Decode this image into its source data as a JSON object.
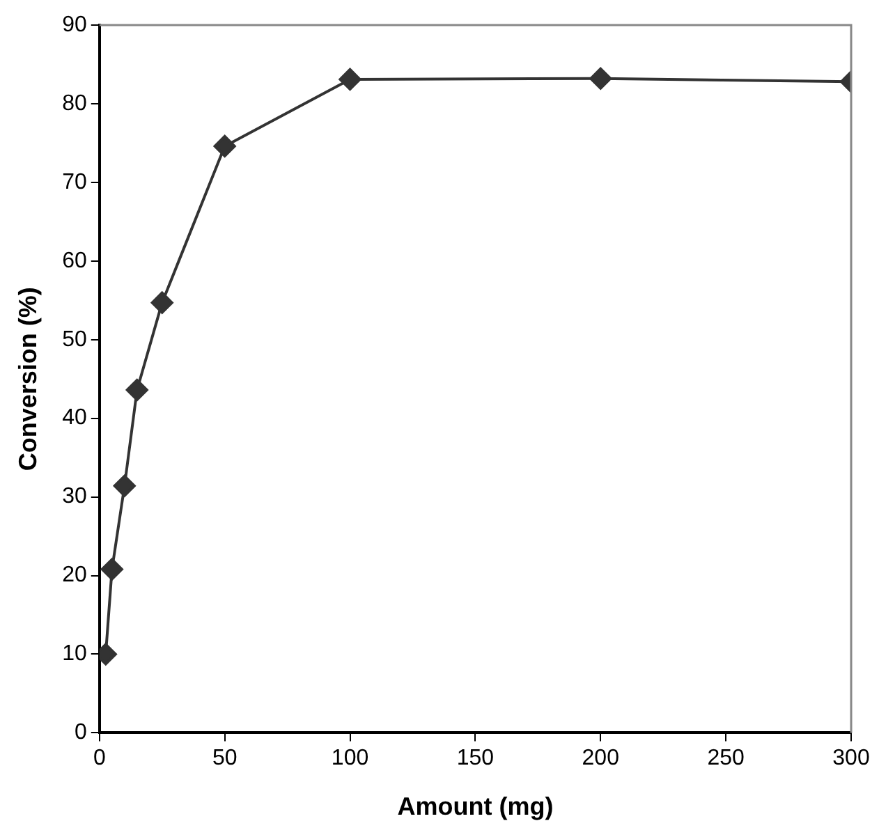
{
  "chart_data": {
    "type": "line",
    "xlabel": "Amount (mg)",
    "ylabel": "Conversion (%)",
    "series": [
      {
        "color": "#333333",
        "x": [
          2.5,
          5,
          10,
          15,
          25,
          50,
          100,
          200,
          300
        ],
        "values": [
          10.0,
          20.8,
          31.4,
          43.6,
          54.7,
          74.6,
          83.1,
          83.2,
          82.8
        ]
      }
    ],
    "xlim": [
      0,
      300
    ],
    "xticks": [
      0,
      50,
      100,
      150,
      200,
      250,
      300
    ],
    "ylim": [
      0,
      90
    ],
    "yticks": [
      0,
      10,
      20,
      30,
      40,
      50,
      60,
      70,
      80,
      90
    ],
    "grid": false,
    "legend": false,
    "marker": "diamond",
    "line_style": "solid"
  }
}
